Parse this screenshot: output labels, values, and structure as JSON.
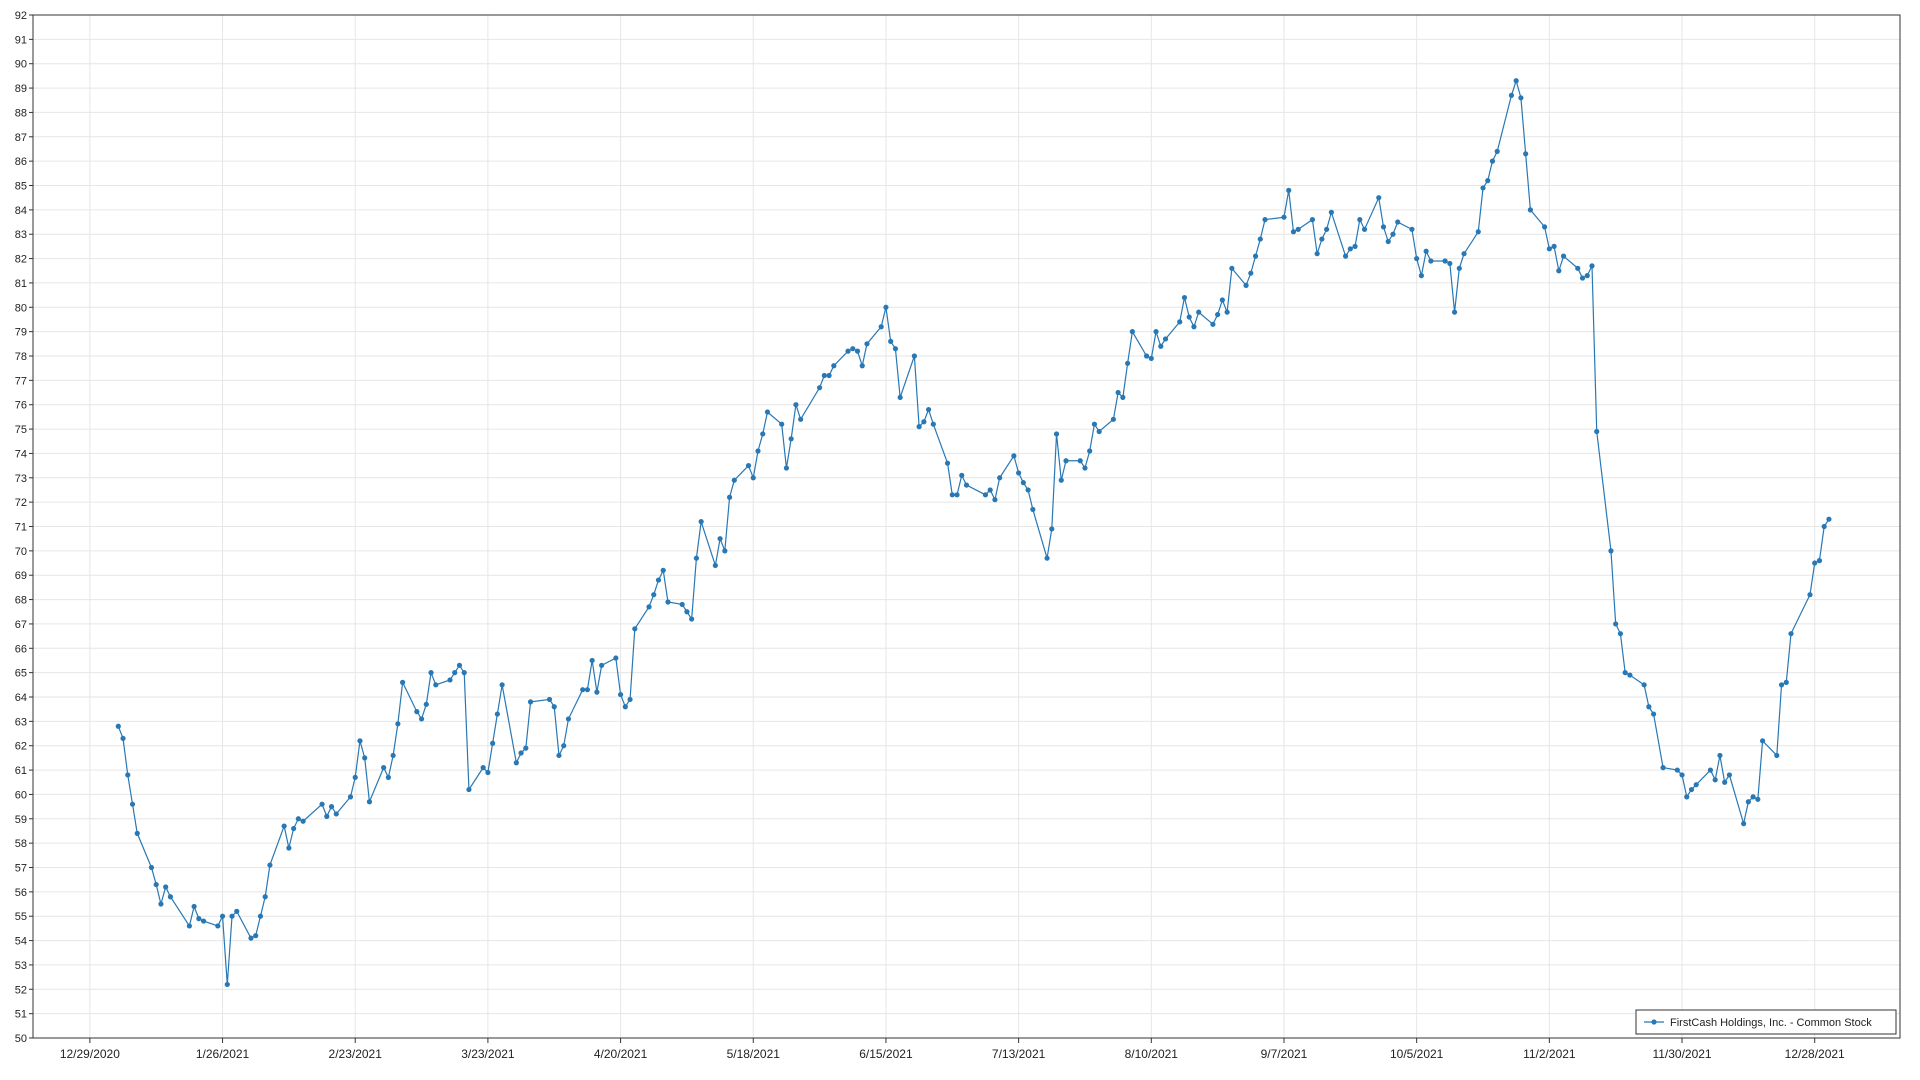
{
  "chart_data": {
    "type": "line",
    "x": [
      "1/4/2021",
      "1/5/2021",
      "1/6/2021",
      "1/7/2021",
      "1/8/2021",
      "1/11/2021",
      "1/12/2021",
      "1/13/2021",
      "1/14/2021",
      "1/15/2021",
      "1/19/2021",
      "1/20/2021",
      "1/21/2021",
      "1/22/2021",
      "1/25/2021",
      "1/26/2021",
      "1/27/2021",
      "1/28/2021",
      "1/29/2021",
      "2/1/2021",
      "2/2/2021",
      "2/3/2021",
      "2/4/2021",
      "2/5/2021",
      "2/8/2021",
      "2/9/2021",
      "2/10/2021",
      "2/11/2021",
      "2/12/2021",
      "2/16/2021",
      "2/17/2021",
      "2/18/2021",
      "2/19/2021",
      "2/22/2021",
      "2/23/2021",
      "2/24/2021",
      "2/25/2021",
      "2/26/2021",
      "3/1/2021",
      "3/2/2021",
      "3/3/2021",
      "3/4/2021",
      "3/5/2021",
      "3/8/2021",
      "3/9/2021",
      "3/10/2021",
      "3/11/2021",
      "3/12/2021",
      "3/15/2021",
      "3/16/2021",
      "3/17/2021",
      "3/18/2021",
      "3/19/2021",
      "3/22/2021",
      "3/23/2021",
      "3/24/2021",
      "3/25/2021",
      "3/26/2021",
      "3/29/2021",
      "3/30/2021",
      "3/31/2021",
      "4/1/2021",
      "4/5/2021",
      "4/6/2021",
      "4/7/2021",
      "4/8/2021",
      "4/9/2021",
      "4/12/2021",
      "4/13/2021",
      "4/14/2021",
      "4/15/2021",
      "4/16/2021",
      "4/19/2021",
      "4/20/2021",
      "4/21/2021",
      "4/22/2021",
      "4/23/2021",
      "4/26/2021",
      "4/27/2021",
      "4/28/2021",
      "4/29/2021",
      "4/30/2021",
      "5/3/2021",
      "5/4/2021",
      "5/5/2021",
      "5/6/2021",
      "5/7/2021",
      "5/10/2021",
      "5/11/2021",
      "5/12/2021",
      "5/13/2021",
      "5/14/2021",
      "5/17/2021",
      "5/18/2021",
      "5/19/2021",
      "5/20/2021",
      "5/21/2021",
      "5/24/2021",
      "5/25/2021",
      "5/26/2021",
      "5/27/2021",
      "5/28/2021",
      "6/1/2021",
      "6/2/2021",
      "6/3/2021",
      "6/4/2021",
      "6/7/2021",
      "6/8/2021",
      "6/9/2021",
      "6/10/2021",
      "6/11/2021",
      "6/14/2021",
      "6/15/2021",
      "6/16/2021",
      "6/17/2021",
      "6/18/2021",
      "6/21/2021",
      "6/22/2021",
      "6/23/2021",
      "6/24/2021",
      "6/25/2021",
      "6/28/2021",
      "6/29/2021",
      "6/30/2021",
      "7/1/2021",
      "7/2/2021",
      "7/6/2021",
      "7/7/2021",
      "7/8/2021",
      "7/9/2021",
      "7/12/2021",
      "7/13/2021",
      "7/14/2021",
      "7/15/2021",
      "7/16/2021",
      "7/19/2021",
      "7/20/2021",
      "7/21/2021",
      "7/22/2021",
      "7/23/2021",
      "7/26/2021",
      "7/27/2021",
      "7/28/2021",
      "7/29/2021",
      "7/30/2021",
      "8/2/2021",
      "8/3/2021",
      "8/4/2021",
      "8/5/2021",
      "8/6/2021",
      "8/9/2021",
      "8/10/2021",
      "8/11/2021",
      "8/12/2021",
      "8/13/2021",
      "8/16/2021",
      "8/17/2021",
      "8/18/2021",
      "8/19/2021",
      "8/20/2021",
      "8/23/2021",
      "8/24/2021",
      "8/25/2021",
      "8/26/2021",
      "8/27/2021",
      "8/30/2021",
      "8/31/2021",
      "9/1/2021",
      "9/2/2021",
      "9/3/2021",
      "9/7/2021",
      "9/8/2021",
      "9/9/2021",
      "9/10/2021",
      "9/13/2021",
      "9/14/2021",
      "9/15/2021",
      "9/16/2021",
      "9/17/2021",
      "9/20/2021",
      "9/21/2021",
      "9/22/2021",
      "9/23/2021",
      "9/24/2021",
      "9/27/2021",
      "9/28/2021",
      "9/29/2021",
      "9/30/2021",
      "10/1/2021",
      "10/4/2021",
      "10/5/2021",
      "10/6/2021",
      "10/7/2021",
      "10/8/2021",
      "10/11/2021",
      "10/12/2021",
      "10/13/2021",
      "10/14/2021",
      "10/15/2021",
      "10/18/2021",
      "10/19/2021",
      "10/20/2021",
      "10/21/2021",
      "10/22/2021",
      "10/25/2021",
      "10/26/2021",
      "10/27/2021",
      "10/28/2021",
      "10/29/2021",
      "11/1/2021",
      "11/2/2021",
      "11/3/2021",
      "11/4/2021",
      "11/5/2021",
      "11/8/2021",
      "11/9/2021",
      "11/10/2021",
      "11/11/2021",
      "11/12/2021",
      "11/15/2021",
      "11/16/2021",
      "11/17/2021",
      "11/18/2021",
      "11/19/2021",
      "11/22/2021",
      "11/23/2021",
      "11/24/2021",
      "11/26/2021",
      "11/29/2021",
      "11/30/2021",
      "12/1/2021",
      "12/2/2021",
      "12/3/2021",
      "12/6/2021",
      "12/7/2021",
      "12/8/2021",
      "12/9/2021",
      "12/10/2021",
      "12/13/2021",
      "12/14/2021",
      "12/15/2021",
      "12/16/2021",
      "12/17/2021",
      "12/20/2021",
      "12/21/2021",
      "12/22/2021",
      "12/23/2021",
      "12/27/2021",
      "12/28/2021",
      "12/29/2021",
      "12/30/2021",
      "12/31/2021"
    ],
    "series": [
      {
        "name": "FirstCash Holdings, Inc. - Common Stock",
        "color": "#2878b5",
        "values": [
          62.8,
          62.3,
          60.8,
          59.6,
          58.4,
          57.0,
          56.3,
          55.5,
          56.2,
          55.8,
          54.6,
          55.4,
          54.9,
          54.8,
          54.6,
          55.0,
          52.2,
          55.0,
          55.2,
          54.1,
          54.2,
          55.0,
          55.8,
          57.1,
          58.7,
          57.8,
          58.6,
          59.0,
          58.9,
          59.6,
          59.1,
          59.5,
          59.2,
          59.9,
          60.7,
          62.2,
          61.5,
          59.7,
          61.1,
          60.7,
          61.6,
          62.9,
          64.6,
          63.4,
          63.1,
          63.7,
          65.0,
          64.5,
          64.7,
          65.0,
          65.3,
          65.0,
          60.2,
          61.1,
          60.9,
          62.1,
          63.3,
          64.5,
          61.3,
          61.7,
          61.9,
          63.8,
          63.9,
          63.6,
          61.6,
          62.0,
          63.1,
          64.3,
          64.3,
          65.5,
          64.2,
          65.3,
          65.6,
          64.1,
          63.6,
          63.9,
          66.8,
          67.7,
          68.2,
          68.8,
          69.2,
          67.9,
          67.8,
          67.5,
          67.2,
          69.7,
          71.2,
          69.4,
          70.5,
          70.0,
          72.2,
          72.9,
          73.5,
          73.0,
          74.1,
          74.8,
          75.7,
          75.2,
          73.4,
          74.6,
          76.0,
          75.4,
          76.7,
          77.2,
          77.2,
          77.6,
          78.2,
          78.3,
          78.2,
          77.6,
          78.5,
          79.2,
          80.0,
          78.6,
          78.3,
          76.3,
          78.0,
          75.1,
          75.3,
          75.8,
          75.2,
          73.6,
          72.3,
          72.3,
          73.1,
          72.7,
          72.3,
          72.5,
          72.1,
          73.0,
          73.9,
          73.2,
          72.8,
          72.5,
          71.7,
          69.7,
          70.9,
          74.8,
          72.9,
          73.7,
          73.7,
          73.4,
          74.1,
          75.2,
          74.9,
          75.4,
          76.5,
          76.3,
          77.7,
          79.0,
          78.0,
          77.9,
          79.0,
          78.4,
          78.7,
          79.4,
          80.4,
          79.6,
          79.2,
          79.8,
          79.3,
          79.7,
          80.3,
          79.8,
          81.6,
          80.9,
          81.4,
          82.1,
          82.8,
          83.6,
          83.7,
          84.8,
          83.1,
          83.2,
          83.6,
          82.2,
          82.8,
          83.2,
          83.9,
          82.1,
          82.4,
          82.5,
          83.6,
          83.2,
          84.5,
          83.3,
          82.7,
          83.0,
          83.5,
          83.2,
          82.0,
          81.3,
          82.3,
          81.9,
          81.9,
          81.8,
          79.8,
          81.6,
          82.2,
          83.1,
          84.9,
          85.2,
          86.0,
          86.4,
          88.7,
          89.3,
          88.6,
          86.3,
          84.0,
          83.3,
          82.4,
          82.5,
          81.5,
          82.1,
          81.6,
          81.2,
          81.3,
          81.7,
          74.9,
          70.0,
          67.0,
          66.6,
          65.0,
          64.9,
          64.5,
          63.6,
          63.3,
          61.1,
          61.0,
          60.8,
          59.9,
          60.2,
          60.4,
          61.0,
          60.6,
          61.6,
          60.5,
          60.8,
          58.8,
          59.7,
          59.9,
          59.8,
          62.2,
          61.6,
          64.5,
          64.6,
          66.6,
          68.2,
          69.5,
          69.6,
          71.0,
          71.3
        ]
      }
    ],
    "xlim": [
      "12/17/2020",
      "1/15/2022"
    ],
    "xticks": [
      "12/29/2020",
      "1/26/2021",
      "2/23/2021",
      "3/23/2021",
      "4/20/2021",
      "5/18/2021",
      "6/15/2021",
      "7/13/2021",
      "8/10/2021",
      "9/7/2021",
      "10/5/2021",
      "11/2/2021",
      "11/30/2021",
      "12/28/2021"
    ],
    "ylim": [
      50,
      92
    ],
    "yticks": [
      50,
      51,
      52,
      53,
      54,
      55,
      56,
      57,
      58,
      59,
      60,
      61,
      62,
      63,
      64,
      65,
      66,
      67,
      68,
      69,
      70,
      71,
      72,
      73,
      74,
      75,
      76,
      77,
      78,
      79,
      80,
      81,
      82,
      83,
      84,
      85,
      86,
      87,
      88,
      89,
      90,
      91,
      92
    ],
    "grid": true,
    "legend": "lower right"
  }
}
